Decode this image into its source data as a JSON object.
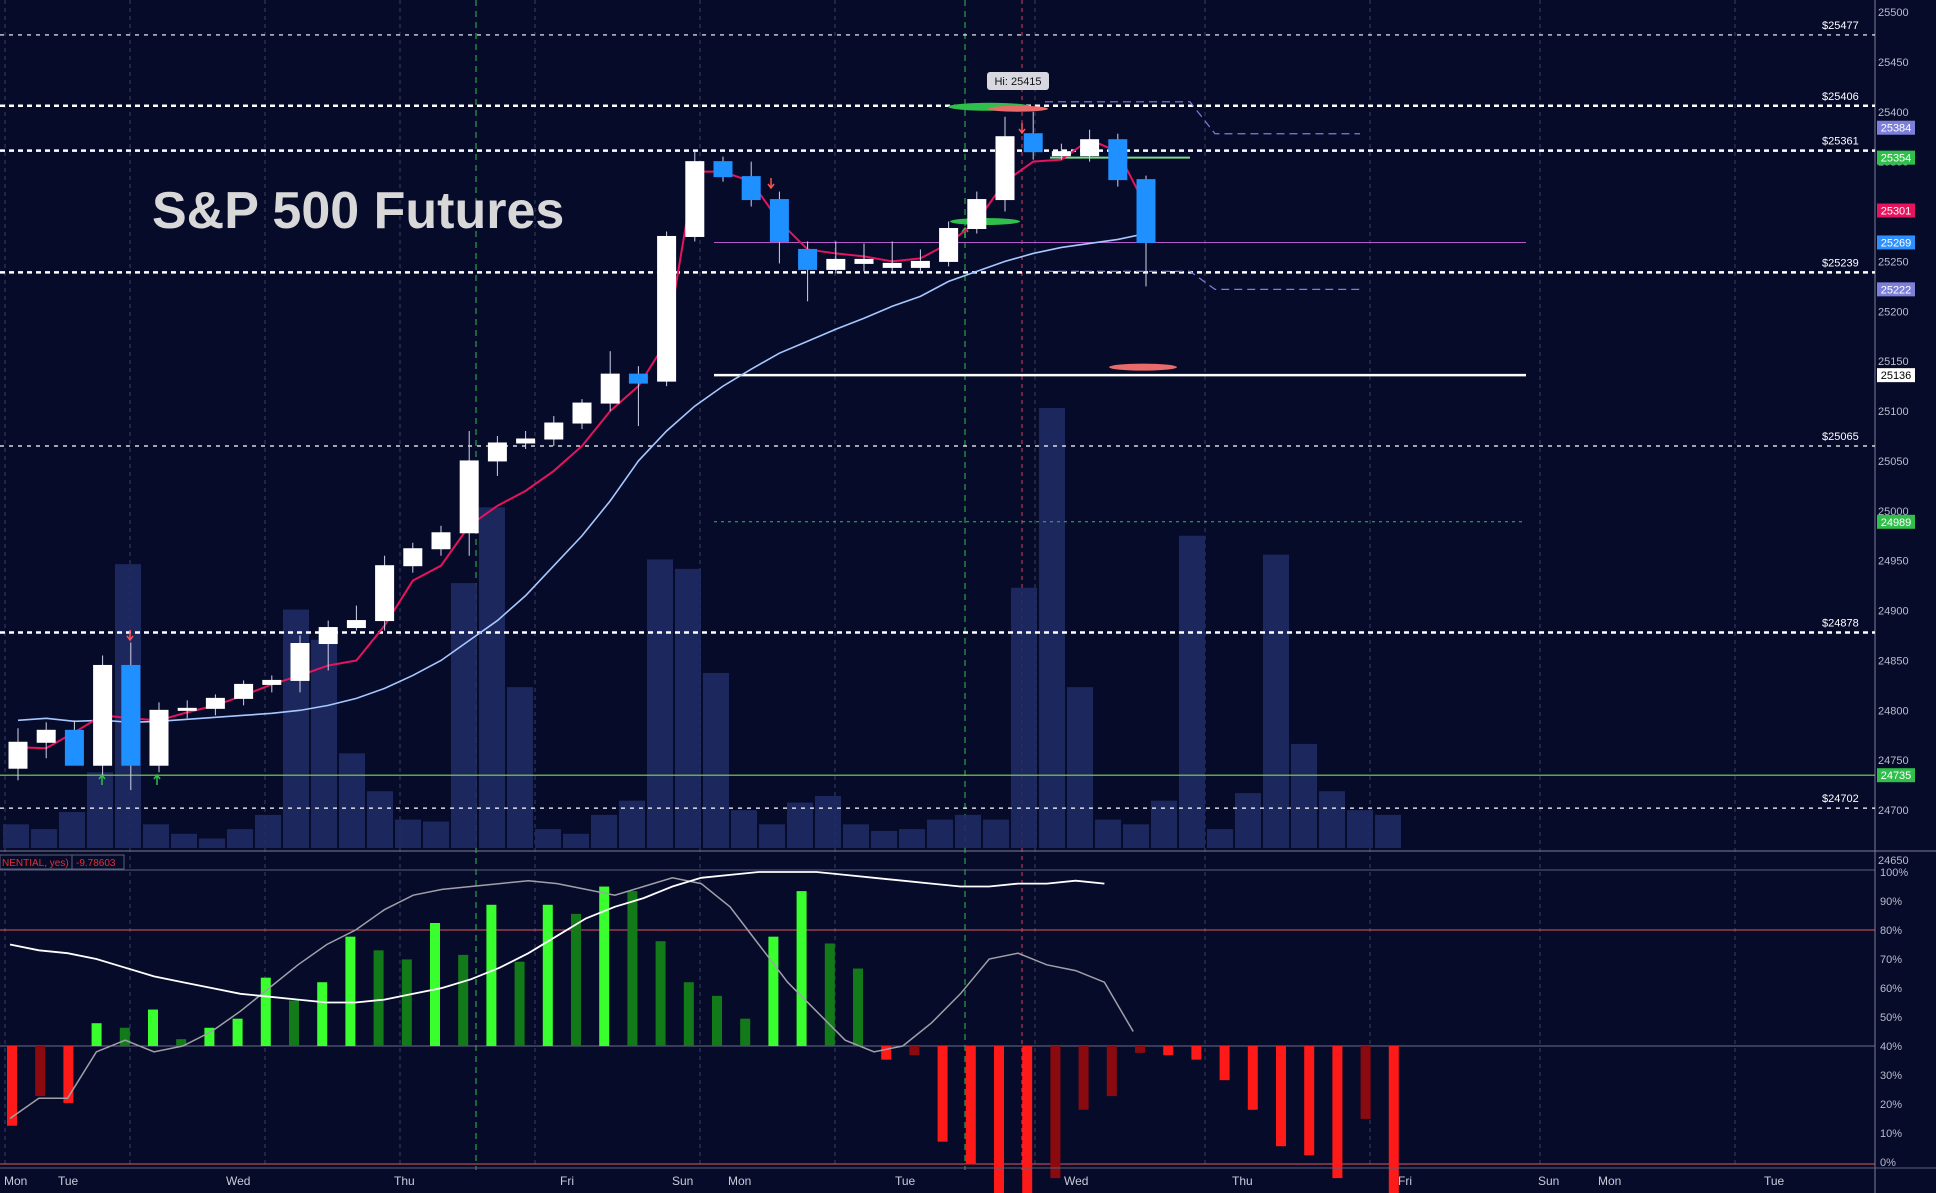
{
  "chart_data": {
    "type": "candlestick",
    "title": "S&P 500 Futures",
    "price_axis": {
      "ylim": [
        24650,
        25500
      ],
      "tick_step": 50
    },
    "oscillator_axis": {
      "ylim": [
        0,
        100
      ],
      "ticks": [
        "0%",
        "10%",
        "20%",
        "30%",
        "40%",
        "50%",
        "60%",
        "70%",
        "80%",
        "90%",
        "100%"
      ]
    },
    "x_labels": [
      "Mon",
      "Tue",
      "Wed",
      "Thu",
      "Fri",
      "Sun",
      "Mon",
      "Tue",
      "Wed",
      "Thu",
      "Fri",
      "Sun",
      "Mon",
      "Tue"
    ],
    "indicator_label": "NENTIAL, yes)",
    "indicator_value": "-9.78603",
    "hi_label": "Hi: 25415",
    "level_lines": [
      {
        "label": "$25477",
        "value": 25477,
        "style": "dashed-thin"
      },
      {
        "label": "$25406",
        "value": 25406,
        "style": "dashed-bold"
      },
      {
        "label": "$25361",
        "value": 25361,
        "style": "dashed-bold"
      },
      {
        "label": "$25239",
        "value": 25239,
        "style": "dashed-bold"
      },
      {
        "label": "$25065",
        "value": 25065,
        "style": "dashed-thin"
      },
      {
        "label": "$24878",
        "value": 24878,
        "style": "dashed-bold"
      },
      {
        "label": "$24702",
        "value": 24702,
        "style": "dashed-thin"
      }
    ],
    "price_tags": [
      {
        "label": "25384",
        "value": 25384,
        "color": "#7d7fd9"
      },
      {
        "label": "25354",
        "value": 25354,
        "color": "#2fbf4a"
      },
      {
        "label": "25301",
        "value": 25301,
        "color": "#e5145c"
      },
      {
        "label": "25269",
        "value": 25269,
        "color": "#2e8fff"
      },
      {
        "label": "25222",
        "value": 25222,
        "color": "#7d7fd9"
      },
      {
        "label": "25136",
        "value": 25136,
        "color": "#ffffff"
      },
      {
        "label": "24989",
        "value": 24989,
        "color": "#2fbf4a"
      },
      {
        "label": "24735",
        "value": 24735,
        "color": "#2fbf4a"
      }
    ],
    "candles": [
      {
        "o": 24742,
        "h": 24782,
        "l": 24730,
        "c": 24768,
        "up": true
      },
      {
        "o": 24768,
        "h": 24788,
        "l": 24752,
        "c": 24780,
        "up": true
      },
      {
        "o": 24780,
        "h": 24790,
        "l": 24745,
        "c": 24745,
        "up": false
      },
      {
        "o": 24745,
        "h": 24855,
        "l": 24735,
        "c": 24845,
        "up": true
      },
      {
        "o": 24845,
        "h": 24868,
        "l": 24720,
        "c": 24745,
        "up": false
      },
      {
        "o": 24745,
        "h": 24808,
        "l": 24738,
        "c": 24800,
        "up": true
      },
      {
        "o": 24800,
        "h": 24810,
        "l": 24792,
        "c": 24802,
        "up": true
      },
      {
        "o": 24802,
        "h": 24816,
        "l": 24795,
        "c": 24812,
        "up": true
      },
      {
        "o": 24812,
        "h": 24830,
        "l": 24805,
        "c": 24826,
        "up": true
      },
      {
        "o": 24826,
        "h": 24835,
        "l": 24818,
        "c": 24830,
        "up": true
      },
      {
        "o": 24830,
        "h": 24875,
        "l": 24818,
        "c": 24867,
        "up": true
      },
      {
        "o": 24867,
        "h": 24890,
        "l": 24840,
        "c": 24883,
        "up": true
      },
      {
        "o": 24883,
        "h": 24905,
        "l": 24880,
        "c": 24890,
        "up": true
      },
      {
        "o": 24890,
        "h": 24955,
        "l": 24880,
        "c": 24945,
        "up": true
      },
      {
        "o": 24945,
        "h": 24968,
        "l": 24938,
        "c": 24962,
        "up": true
      },
      {
        "o": 24962,
        "h": 24985,
        "l": 24955,
        "c": 24978,
        "up": true
      },
      {
        "o": 24978,
        "h": 25080,
        "l": 24955,
        "c": 25050,
        "up": true
      },
      {
        "o": 25050,
        "h": 25075,
        "l": 25035,
        "c": 25068,
        "up": true
      },
      {
        "o": 25068,
        "h": 25080,
        "l": 25062,
        "c": 25072,
        "up": true
      },
      {
        "o": 25072,
        "h": 25095,
        "l": 25065,
        "c": 25088,
        "up": true
      },
      {
        "o": 25088,
        "h": 25112,
        "l": 25082,
        "c": 25108,
        "up": true
      },
      {
        "o": 25108,
        "h": 25160,
        "l": 25100,
        "c": 25137,
        "up": true
      },
      {
        "o": 25137,
        "h": 25145,
        "l": 25085,
        "c": 25128,
        "up": false
      },
      {
        "o": 25130,
        "h": 25280,
        "l": 25125,
        "c": 25275,
        "up": true
      },
      {
        "o": 25275,
        "h": 25360,
        "l": 25270,
        "c": 25350,
        "up": true
      },
      {
        "o": 25350,
        "h": 25355,
        "l": 25330,
        "c": 25335,
        "up": false
      },
      {
        "o": 25335,
        "h": 25350,
        "l": 25305,
        "c": 25312,
        "up": false
      },
      {
        "o": 25312,
        "h": 25320,
        "l": 25248,
        "c": 25270,
        "up": false
      },
      {
        "o": 25262,
        "h": 25270,
        "l": 25210,
        "c": 25242,
        "up": false
      },
      {
        "o": 25242,
        "h": 25270,
        "l": 25238,
        "c": 25252,
        "up": true
      },
      {
        "o": 25252,
        "h": 25268,
        "l": 25240,
        "c": 25248,
        "up": true
      },
      {
        "o": 25248,
        "h": 25270,
        "l": 25240,
        "c": 25244,
        "up": true
      },
      {
        "o": 25244,
        "h": 25262,
        "l": 25238,
        "c": 25250,
        "up": true
      },
      {
        "o": 25250,
        "h": 25290,
        "l": 25245,
        "c": 25283,
        "up": true
      },
      {
        "o": 25283,
        "h": 25320,
        "l": 25278,
        "c": 25312,
        "up": true
      },
      {
        "o": 25312,
        "h": 25395,
        "l": 25300,
        "c": 25375,
        "up": true
      },
      {
        "o": 25378,
        "h": 25400,
        "l": 25352,
        "c": 25360,
        "up": false
      },
      {
        "o": 25360,
        "h": 25368,
        "l": 25352,
        "c": 25356,
        "up": true
      },
      {
        "o": 25356,
        "h": 25382,
        "l": 25350,
        "c": 25372,
        "up": true
      },
      {
        "o": 25372,
        "h": 25378,
        "l": 25325,
        "c": 25332,
        "up": false
      },
      {
        "o": 25332,
        "h": 25336,
        "l": 25225,
        "c": 25269,
        "up": false
      }
    ],
    "ma_pink": [
      24763,
      24762,
      24778,
      24795,
      24792,
      24790,
      24798,
      24805,
      24815,
      24826,
      24835,
      24845,
      24850,
      24885,
      24930,
      24945,
      24985,
      25005,
      25020,
      25040,
      25065,
      25100,
      25125,
      25170,
      25340,
      25340,
      25330,
      25290,
      25262,
      25258,
      25255,
      25250,
      25253,
      25268,
      25290,
      25330,
      25350,
      25352,
      25372,
      25360,
      25305
    ],
    "ma_blue": [
      24790,
      24792,
      24789,
      24790,
      24788,
      24789,
      24791,
      24793,
      24795,
      24797,
      24800,
      24805,
      24812,
      24822,
      24835,
      24850,
      24870,
      24890,
      24915,
      24945,
      24975,
      25010,
      25050,
      25080,
      25105,
      25125,
      25142,
      25158,
      25170,
      25182,
      25193,
      25205,
      25215,
      25230,
      25240,
      25250,
      25258,
      25264,
      25268,
      25272,
      25278
    ],
    "volume": [
      25,
      20,
      38,
      80,
      300,
      25,
      15,
      10,
      20,
      35,
      252,
      220,
      100,
      60,
      30,
      28,
      280,
      360,
      170,
      20,
      15,
      35,
      50,
      305,
      295,
      185,
      40,
      25,
      48,
      55,
      25,
      18,
      20,
      30,
      35,
      30,
      275,
      465,
      170,
      30,
      25,
      50,
      330,
      20,
      58,
      310,
      110,
      60,
      40,
      35
    ],
    "histogram": [
      -35,
      -22,
      -25,
      10,
      8,
      16,
      3,
      8,
      12,
      30,
      20,
      28,
      48,
      42,
      38,
      54,
      40,
      62,
      37,
      62,
      58,
      70,
      68,
      46,
      28,
      22,
      12,
      48,
      68,
      45,
      34,
      -6,
      -4,
      -42,
      -52,
      -65,
      -70,
      -58,
      -28,
      -22,
      -3,
      -4,
      -6,
      -15,
      -28,
      -44,
      -48,
      -58,
      -32,
      -72
    ],
    "osc_white": [
      75,
      73,
      72,
      70,
      67,
      64,
      62,
      60,
      58,
      57,
      56,
      55,
      55,
      56,
      58,
      60,
      63,
      67,
      72,
      78,
      84,
      88,
      91,
      95,
      98,
      99,
      100,
      100,
      100,
      99,
      98,
      97,
      96,
      95,
      95,
      96,
      96,
      97,
      96
    ],
    "osc_gray": [
      15,
      22,
      22,
      38,
      42,
      38,
      40,
      45,
      52,
      60,
      68,
      75,
      80,
      87,
      92,
      94,
      95,
      96,
      97,
      96,
      94,
      92,
      95,
      98,
      96,
      88,
      75,
      62,
      52,
      42,
      38,
      40,
      48,
      58,
      70,
      72,
      68,
      66,
      62,
      45
    ]
  }
}
